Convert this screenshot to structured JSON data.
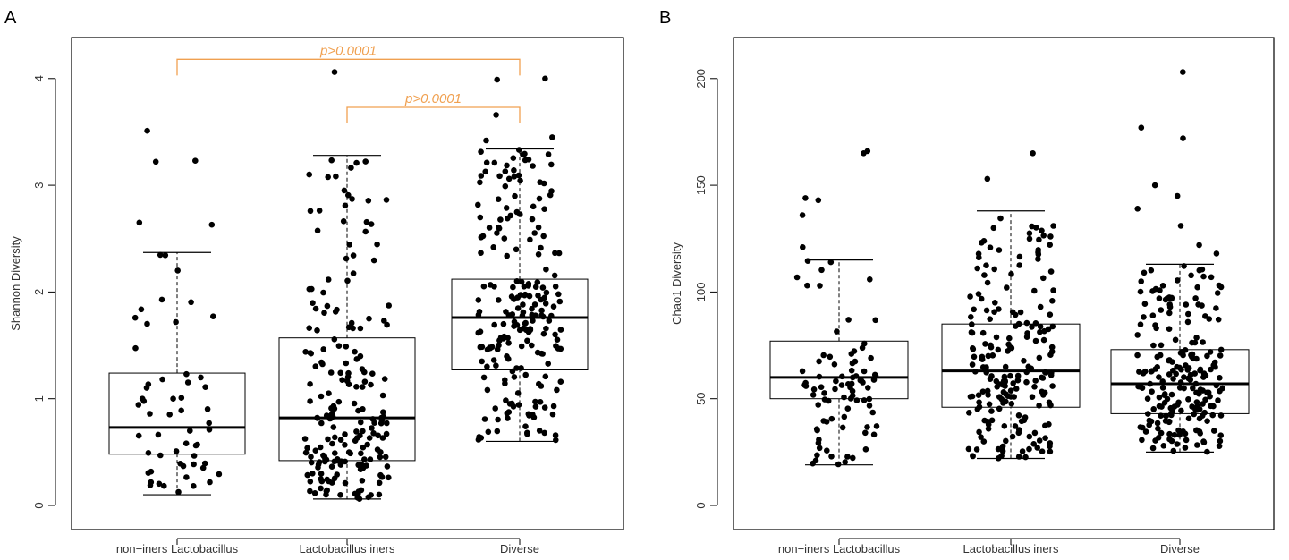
{
  "colors": {
    "significance": "#F0A050",
    "points": "#000000",
    "frame": "#000000"
  },
  "chart_data": [
    {
      "type": "box",
      "panel_label": "A",
      "title": "",
      "xlabel": "",
      "ylabel": "Shannon Diversity",
      "ylim": [
        0,
        4.3
      ],
      "yticks": [
        "0",
        "1",
        "2",
        "3",
        "4"
      ],
      "categories": [
        "non−iners Lactobacillus",
        "Lactobacillus iners",
        "Diverse"
      ],
      "boxes": [
        {
          "category": "non−iners Lactobacillus",
          "whisker_low": 0.1,
          "q1": 0.48,
          "median": 0.73,
          "q3": 1.24,
          "whisker_high": 2.37,
          "outliers": [
            2.63,
            2.65,
            3.22,
            3.23,
            3.51
          ],
          "n_points": 55
        },
        {
          "category": "Lactobacillus iners",
          "whisker_low": 0.06,
          "q1": 0.42,
          "median": 0.82,
          "q3": 1.57,
          "whisker_high": 3.28,
          "outliers": [
            4.06
          ],
          "n_points": 200
        },
        {
          "category": "Diverse",
          "whisker_low": 0.6,
          "q1": 1.27,
          "median": 1.76,
          "q3": 2.12,
          "whisker_high": 3.34,
          "outliers": [
            3.42,
            3.45,
            3.66,
            3.99,
            4.0
          ],
          "n_points": 210
        }
      ],
      "annotations": [
        {
          "label": "p>0.0001",
          "from": "non−iners Lactobacillus",
          "to": "Diverse",
          "y": 4.18
        },
        {
          "label": "p>0.0001",
          "from": "Lactobacillus iners",
          "to": "Diverse",
          "y": 3.73
        }
      ]
    },
    {
      "type": "box",
      "panel_label": "B",
      "title": "",
      "xlabel": "",
      "ylabel": "Chao1 Diversity",
      "ylim": [
        0,
        215
      ],
      "yticks": [
        "0",
        "50",
        "100",
        "150",
        "200"
      ],
      "categories": [
        "non−iners Lactobacillus",
        "Lactobacillus iners",
        "Diverse"
      ],
      "boxes": [
        {
          "category": "non−iners Lactobacillus",
          "whisker_low": 19,
          "q1": 50,
          "median": 60,
          "q3": 77,
          "whisker_high": 115,
          "outliers": [
            121,
            136,
            143,
            144,
            165,
            166
          ],
          "n_points": 85
        },
        {
          "category": "Lactobacillus iners",
          "whisker_low": 22,
          "q1": 46,
          "median": 63,
          "q3": 85,
          "whisker_high": 138,
          "outliers": [
            153,
            165
          ],
          "n_points": 200
        },
        {
          "category": "Diverse",
          "whisker_low": 25,
          "q1": 43,
          "median": 57,
          "q3": 73,
          "whisker_high": 113,
          "outliers": [
            118,
            122,
            131,
            139,
            145,
            150,
            172,
            177,
            203
          ],
          "n_points": 210
        }
      ],
      "annotations": []
    }
  ]
}
